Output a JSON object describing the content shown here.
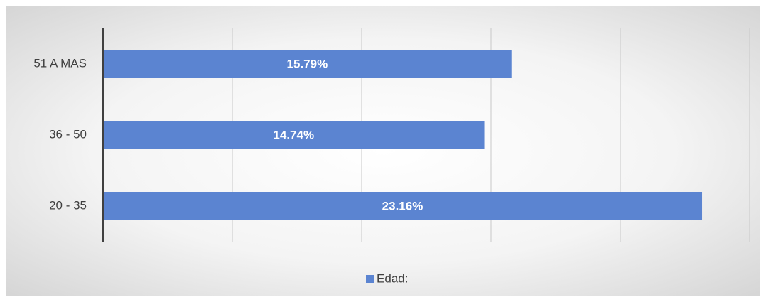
{
  "chart_data": {
    "type": "bar",
    "orientation": "horizontal",
    "categories": [
      "20 - 35",
      "36 - 50",
      "51 A MAS"
    ],
    "series": [
      {
        "name": "Edad:",
        "color": "#5b84d1",
        "values": [
          23.16,
          14.74,
          15.79
        ],
        "value_labels": [
          "23.16%",
          "14.74%",
          "15.79%"
        ]
      }
    ],
    "xlim": [
      0,
      25
    ],
    "xticks": [
      0,
      5,
      10,
      15,
      20,
      25
    ],
    "grid": true,
    "legend": "bottom"
  }
}
